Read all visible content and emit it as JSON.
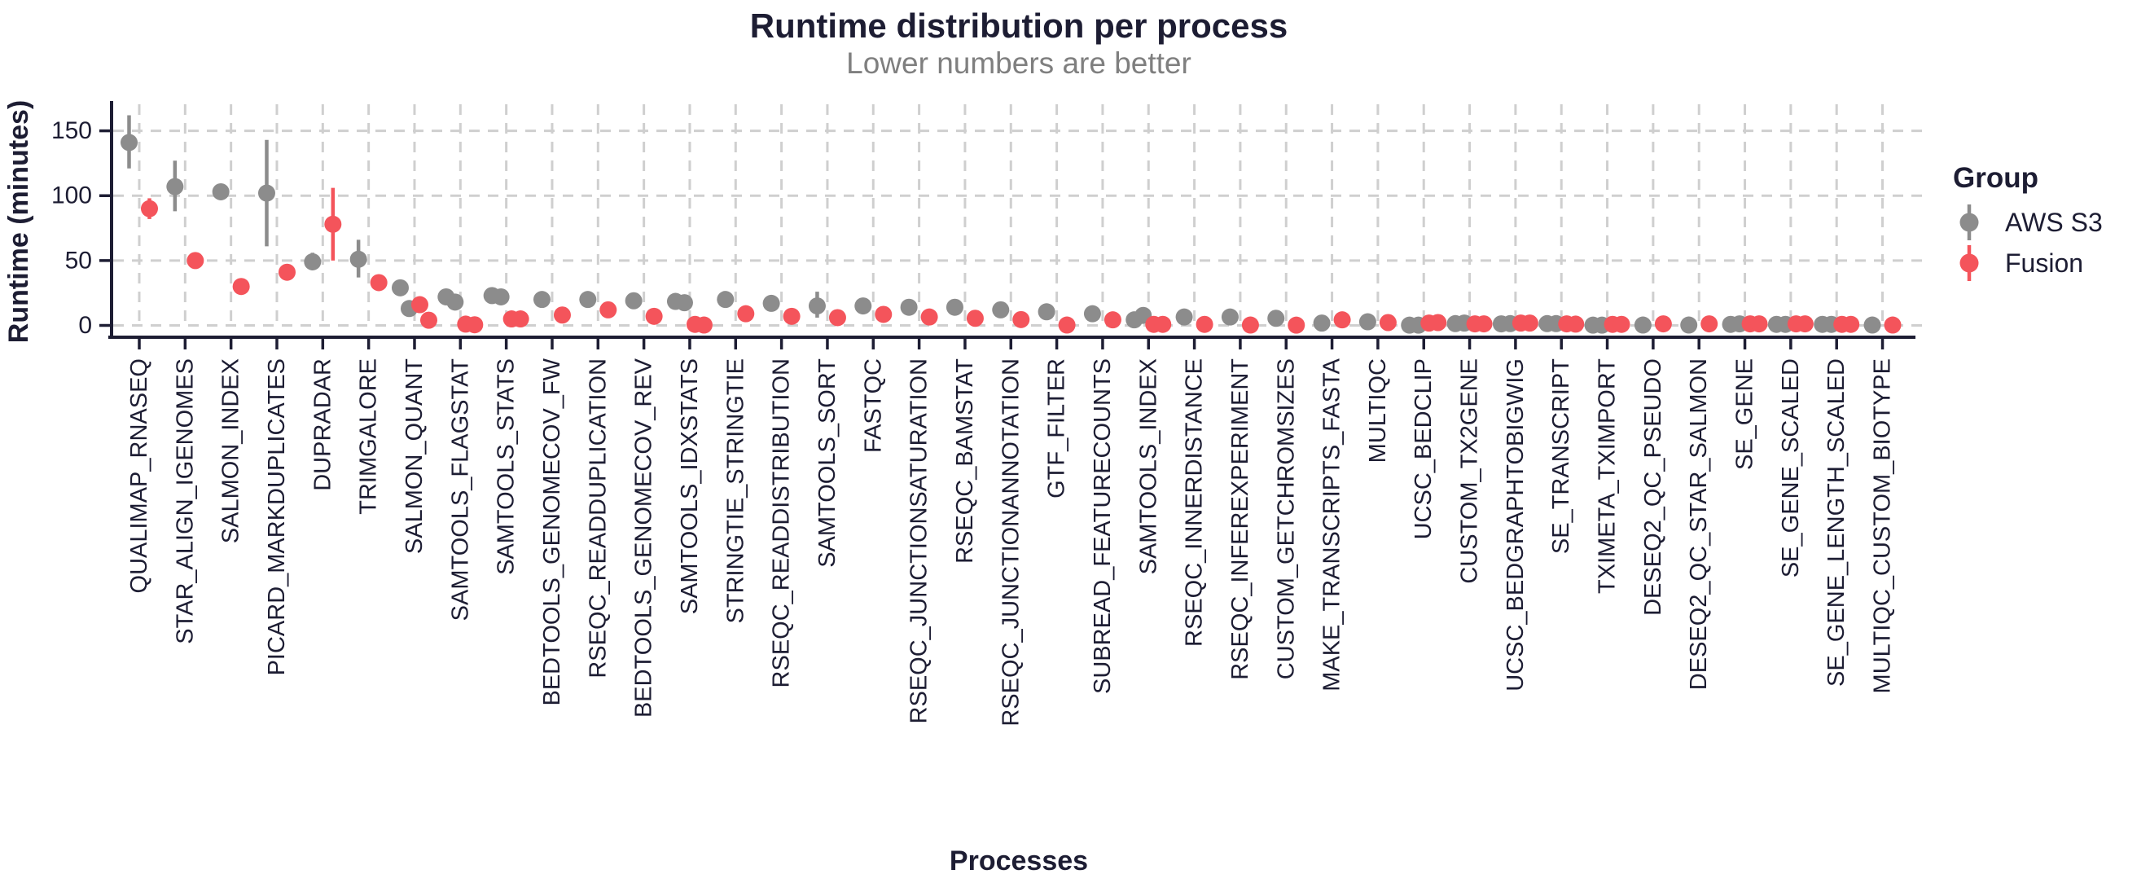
{
  "chart_data": {
    "type": "scatter",
    "title": "Runtime distribution per process",
    "subtitle": "Lower numbers are better",
    "xlabel": "Processes",
    "ylabel": "Runtime (minutes)",
    "ylim": [
      0,
      170
    ],
    "yticks": [
      0,
      50,
      100,
      150
    ],
    "grid": "dashed",
    "legend": {
      "title": "Group",
      "position": "right",
      "entries": [
        {
          "name": "AWS S3",
          "color": "#8c8c8c"
        },
        {
          "name": "Fusion",
          "color": "#f4545b"
        }
      ]
    },
    "series": [
      {
        "process": "QUALIMAP_RNASEQ",
        "aws_s3": {
          "points": [
            141
          ],
          "ci": [
            121,
            162
          ]
        },
        "fusion": {
          "points": [
            90
          ],
          "ci": [
            82,
            98
          ]
        }
      },
      {
        "process": "STAR_ALIGN_IGENOMES",
        "aws_s3": {
          "points": [
            107
          ],
          "ci": [
            88,
            127
          ]
        },
        "fusion": {
          "points": [
            50
          ]
        }
      },
      {
        "process": "SALMON_INDEX",
        "aws_s3": {
          "points": [
            103
          ]
        },
        "fusion": {
          "points": [
            30
          ]
        }
      },
      {
        "process": "PICARD_MARKDUPLICATES",
        "aws_s3": {
          "points": [
            102
          ],
          "ci": [
            61,
            143
          ]
        },
        "fusion": {
          "points": [
            41
          ]
        }
      },
      {
        "process": "DUPRADAR",
        "aws_s3": {
          "points": [
            49
          ],
          "ci": [
            44,
            56
          ]
        },
        "fusion": {
          "points": [
            78
          ],
          "ci": [
            50,
            106
          ]
        }
      },
      {
        "process": "TRIMGALORE",
        "aws_s3": {
          "points": [
            51
          ],
          "ci": [
            37,
            66
          ]
        },
        "fusion": {
          "points": [
            33
          ]
        }
      },
      {
        "process": "SALMON_QUANT",
        "aws_s3": {
          "points": [
            29,
            13
          ]
        },
        "fusion": {
          "points": [
            16,
            4
          ]
        }
      },
      {
        "process": "SAMTOOLS_FLAGSTAT",
        "aws_s3": {
          "points": [
            22,
            18
          ]
        },
        "fusion": {
          "points": [
            1,
            0.5
          ]
        }
      },
      {
        "process": "SAMTOOLS_STATS",
        "aws_s3": {
          "points": [
            23,
            22
          ],
          "ci": [
            20,
            26
          ]
        },
        "fusion": {
          "points": [
            5,
            5
          ]
        }
      },
      {
        "process": "BEDTOOLS_GENOMECOV_FW",
        "aws_s3": {
          "points": [
            20
          ]
        },
        "fusion": {
          "points": [
            8
          ]
        }
      },
      {
        "process": "RSEQC_READDUPLICATION",
        "aws_s3": {
          "points": [
            20
          ]
        },
        "fusion": {
          "points": [
            12
          ]
        }
      },
      {
        "process": "BEDTOOLS_GENOMECOV_REV",
        "aws_s3": {
          "points": [
            19
          ]
        },
        "fusion": {
          "points": [
            7
          ]
        }
      },
      {
        "process": "SAMTOOLS_IDXSTATS",
        "aws_s3": {
          "points": [
            18.5,
            17.5
          ]
        },
        "fusion": {
          "points": [
            0.8,
            0.3
          ]
        }
      },
      {
        "process": "STRINGTIE_STRINGTIE",
        "aws_s3": {
          "points": [
            20
          ]
        },
        "fusion": {
          "points": [
            9
          ]
        }
      },
      {
        "process": "RSEQC_READDISTRIBUTION",
        "aws_s3": {
          "points": [
            17
          ]
        },
        "fusion": {
          "points": [
            7
          ]
        }
      },
      {
        "process": "SAMTOOLS_SORT",
        "aws_s3": {
          "points": [
            15
          ],
          "ci": [
            6,
            26
          ]
        },
        "fusion": {
          "points": [
            6
          ]
        }
      },
      {
        "process": "FASTQC",
        "aws_s3": {
          "points": [
            15
          ]
        },
        "fusion": {
          "points": [
            8.5
          ]
        }
      },
      {
        "process": "RSEQC_JUNCTIONSATURATION",
        "aws_s3": {
          "points": [
            14
          ]
        },
        "fusion": {
          "points": [
            6.5
          ]
        }
      },
      {
        "process": "RSEQC_BAMSTAT",
        "aws_s3": {
          "points": [
            14
          ]
        },
        "fusion": {
          "points": [
            5.5
          ]
        }
      },
      {
        "process": "RSEQC_JUNCTIONANNOTATION",
        "aws_s3": {
          "points": [
            12
          ]
        },
        "fusion": {
          "points": [
            4.5
          ]
        }
      },
      {
        "process": "GTF_FILTER",
        "aws_s3": {
          "points": [
            10.5
          ]
        },
        "fusion": {
          "points": [
            0.3
          ]
        }
      },
      {
        "process": "SUBREAD_FEATURECOUNTS",
        "aws_s3": {
          "points": [
            9
          ]
        },
        "fusion": {
          "points": [
            4.3
          ]
        }
      },
      {
        "process": "SAMTOOLS_INDEX",
        "aws_s3": {
          "points": [
            4.3,
            7.7
          ]
        },
        "fusion": {
          "points": [
            0.8,
            0.8
          ]
        }
      },
      {
        "process": "RSEQC_INNERDISTANCE",
        "aws_s3": {
          "points": [
            6.5
          ]
        },
        "fusion": {
          "points": [
            0.8
          ]
        }
      },
      {
        "process": "RSEQC_INFEREXPERIMENT",
        "aws_s3": {
          "points": [
            6.5
          ]
        },
        "fusion": {
          "points": [
            0.3
          ]
        }
      },
      {
        "process": "CUSTOM_GETCHROMSIZES",
        "aws_s3": {
          "points": [
            5.5
          ]
        },
        "fusion": {
          "points": [
            0.2
          ]
        }
      },
      {
        "process": "MAKE_TRANSCRIPTS_FASTA",
        "aws_s3": {
          "points": [
            1.8
          ]
        },
        "fusion": {
          "points": [
            4.3
          ]
        }
      },
      {
        "process": "MULTIQC",
        "aws_s3": {
          "points": [
            2.8
          ]
        },
        "fusion": {
          "points": [
            2.2
          ]
        }
      },
      {
        "process": "UCSC_BEDCLIP",
        "aws_s3": {
          "points": [
            0.2,
            0.2
          ]
        },
        "fusion": {
          "points": [
            1.8,
            2.2
          ]
        }
      },
      {
        "process": "CUSTOM_TX2GENE",
        "aws_s3": {
          "points": [
            1.4,
            1.8
          ]
        },
        "fusion": {
          "points": [
            1.2,
            1.2
          ]
        }
      },
      {
        "process": "UCSC_BEDGRAPHTOBIGWIG",
        "aws_s3": {
          "points": [
            1.2,
            1.4
          ]
        },
        "fusion": {
          "points": [
            1.8,
            1.8
          ]
        }
      },
      {
        "process": "SE_TRANSCRIPT",
        "aws_s3": {
          "points": [
            1.4,
            1.4
          ]
        },
        "fusion": {
          "points": [
            1.2,
            1.0
          ]
        }
      },
      {
        "process": "TXIMETA_TXIMPORT",
        "aws_s3": {
          "points": [
            0.2,
            0.2
          ]
        },
        "fusion": {
          "points": [
            0.8,
            0.8
          ]
        }
      },
      {
        "process": "DESEQ2_QC_PSEUDO",
        "aws_s3": {
          "points": [
            0.3
          ]
        },
        "fusion": {
          "points": [
            1.2
          ]
        }
      },
      {
        "process": "DESEQ2_QC_STAR_SALMON",
        "aws_s3": {
          "points": [
            0.3
          ]
        },
        "fusion": {
          "points": [
            1.2
          ]
        }
      },
      {
        "process": "SE_GENE",
        "aws_s3": {
          "points": [
            0.8,
            1.2
          ]
        },
        "fusion": {
          "points": [
            1.2,
            1.2
          ]
        }
      },
      {
        "process": "SE_GENE_SCALED",
        "aws_s3": {
          "points": [
            0.8,
            0.8
          ]
        },
        "fusion": {
          "points": [
            1.2,
            1.2
          ]
        }
      },
      {
        "process": "SE_GENE_LENGTH_SCALED",
        "aws_s3": {
          "points": [
            0.8,
            0.8
          ]
        },
        "fusion": {
          "points": [
            0.8,
            0.8
          ]
        }
      },
      {
        "process": "MULTIQC_CUSTOM_BIOTYPE",
        "aws_s3": {
          "points": [
            0.3
          ]
        },
        "fusion": {
          "points": [
            0.3
          ]
        }
      }
    ]
  }
}
